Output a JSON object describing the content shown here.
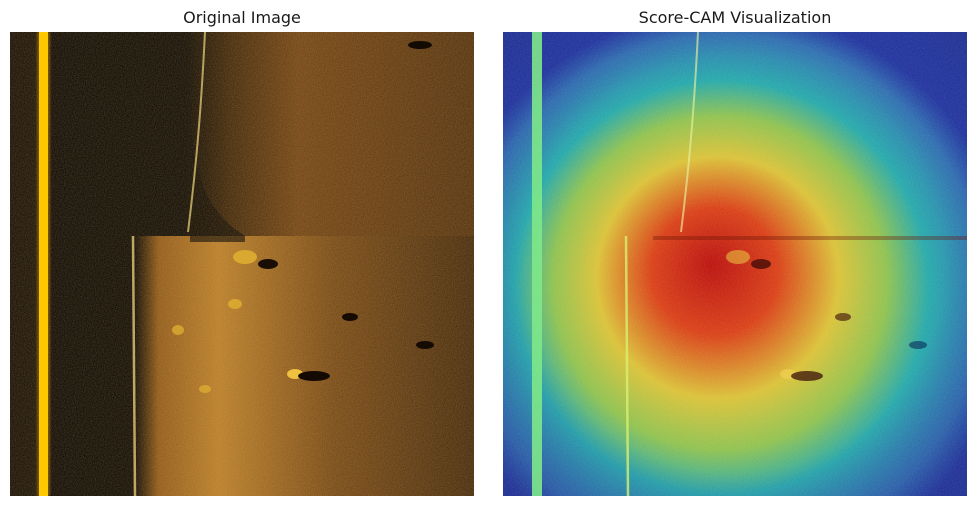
{
  "panels": {
    "left": {
      "title": "Original Image"
    },
    "right": {
      "title": "Score-CAM Visualization"
    }
  },
  "colors": {
    "sonar_dark": "#050302",
    "sonar_mid": "#6b3f12",
    "sonar_bright": "#c98a2e",
    "rail_yellow": "#ffd400",
    "heat_blue": "#1a2a9a",
    "heat_cyan": "#1fa6b0",
    "heat_yellow": "#d8d83a",
    "heat_red": "#c21a0a"
  }
}
